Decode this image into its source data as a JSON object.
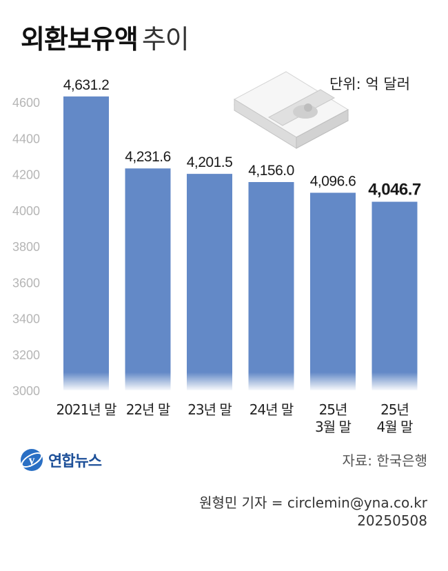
{
  "title": {
    "bold": "외환보유액",
    "light": "추이"
  },
  "unit_label": "단위: 억 달러",
  "icon": "money-bundle-icon",
  "source": "자료: 한국은행",
  "logo": {
    "text": "연합뉴스",
    "icon": "yonhap-logo-icon"
  },
  "credit": {
    "reporter": "원형민 기자 = circlemin@yna.co.kr",
    "date": "20250508"
  },
  "colors": {
    "bar": "#6389c7",
    "axis_text": "#b5b5b5",
    "label": "#1a1a1a"
  },
  "chart_data": {
    "type": "bar",
    "categories": [
      "2021년 말",
      "22년 말",
      "23년 말",
      "24년 말",
      "25년 3월 말",
      "25년 4월 말"
    ],
    "category_lines": [
      [
        "2021년 말"
      ],
      [
        "22년 말"
      ],
      [
        "23년 말"
      ],
      [
        "24년 말"
      ],
      [
        "25년",
        "3월 말"
      ],
      [
        "25년",
        "4월 말"
      ]
    ],
    "values": [
      4631.2,
      4231.6,
      4201.5,
      4156.0,
      4096.6,
      4046.7
    ],
    "value_labels": [
      "4,631.2",
      "4,231.6",
      "4,201.5",
      "4,156.0",
      "4,096.6",
      "4,046.7"
    ],
    "highlight_index": 5,
    "ylim": [
      3000,
      4600
    ],
    "yticks": [
      3000,
      3200,
      3400,
      3600,
      3800,
      4000,
      4200,
      4400,
      4600
    ],
    "grid": false,
    "axis_break": true
  }
}
